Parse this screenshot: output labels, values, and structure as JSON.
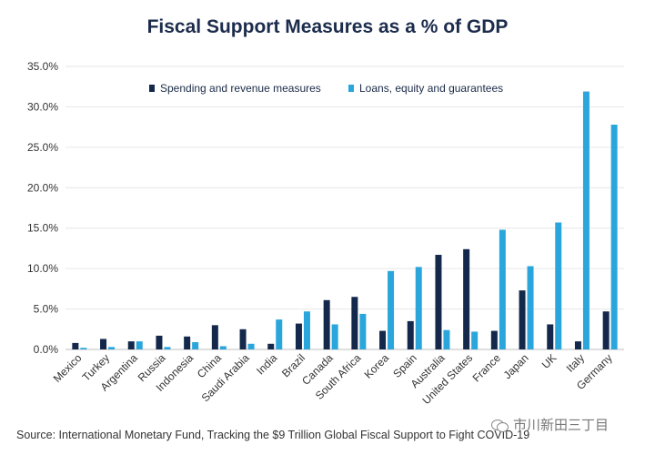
{
  "chart_data": {
    "type": "bar",
    "title": "Fiscal Support Measures as a % of GDP",
    "categories": [
      "Mexico",
      "Turkey",
      "Argentina",
      "Russia",
      "Indonesia",
      "China",
      "Saudi Arabia",
      "India",
      "Brazil",
      "Canada",
      "South Africa",
      "Korea",
      "Spain",
      "Australia",
      "United States",
      "France",
      "Japan",
      "UK",
      "Italy",
      "Germany"
    ],
    "series": [
      {
        "name": "Spending and revenue measures",
        "color": "#13284b",
        "values": [
          0.8,
          1.3,
          1.0,
          1.7,
          1.6,
          3.0,
          2.5,
          0.7,
          3.2,
          6.1,
          6.5,
          2.3,
          3.5,
          11.7,
          12.4,
          2.3,
          7.3,
          3.1,
          1.0,
          4.7
        ]
      },
      {
        "name": "Loans, equity and guarantees",
        "color": "#2aa6dc",
        "values": [
          0.2,
          0.3,
          1.0,
          0.3,
          0.9,
          0.4,
          0.7,
          3.7,
          4.7,
          3.1,
          4.4,
          9.7,
          10.2,
          2.4,
          2.2,
          14.8,
          10.3,
          15.7,
          31.9,
          27.8
        ]
      }
    ],
    "ylim": [
      0,
      35
    ],
    "yticks": [
      "0.0%",
      "5.0%",
      "10.0%",
      "15.0%",
      "20.0%",
      "25.0%",
      "30.0%",
      "35.0%"
    ],
    "grid": true,
    "legend": "top"
  },
  "source": "Source: International Monetary Fund, Tracking the $9 Trillion Global Fiscal Support to Fight COVID-19",
  "watermark": "市川新田三丁目"
}
